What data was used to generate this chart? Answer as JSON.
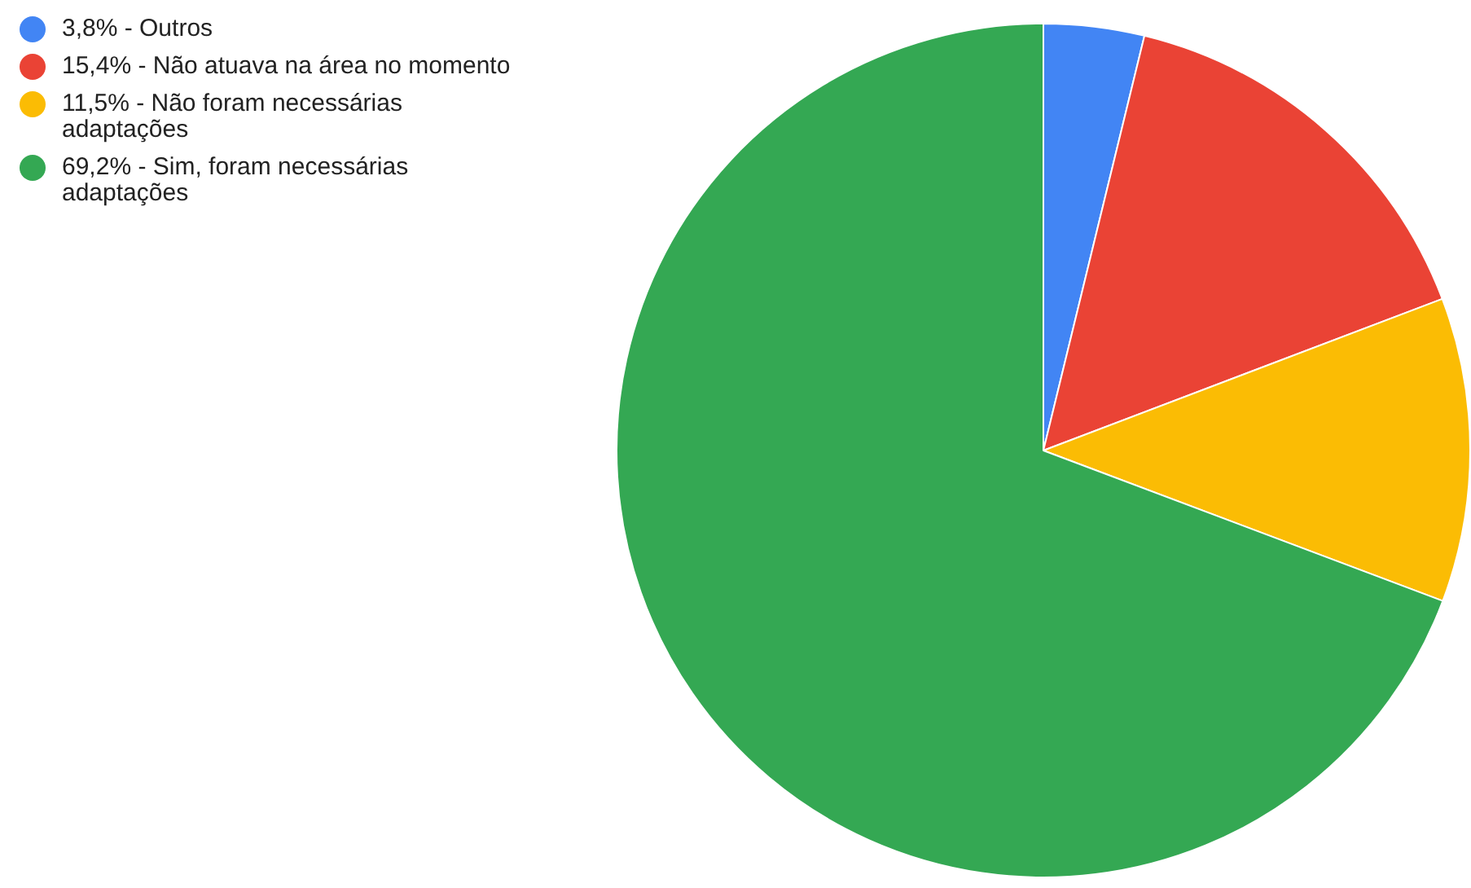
{
  "chart_data": {
    "type": "pie",
    "categories": [
      "3,8% - Outros",
      "15,4% - Não atuava na área no momento",
      "11,5% - Não foram necessárias adaptações",
      "69,2% - Sim, foram necessárias adaptações"
    ],
    "values": [
      3.8,
      15.4,
      11.5,
      69.2
    ],
    "colors": [
      "#4285f4",
      "#ea4335",
      "#fbbc04",
      "#34a853"
    ],
    "legend": "top left"
  }
}
